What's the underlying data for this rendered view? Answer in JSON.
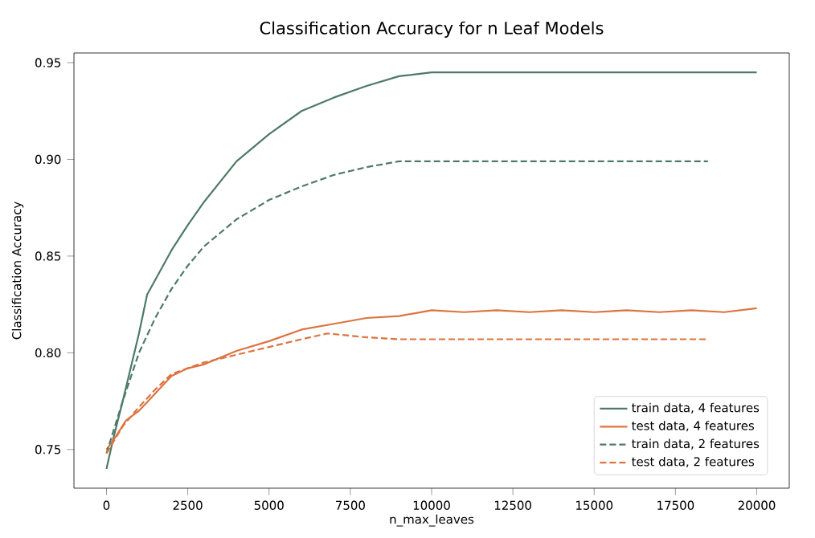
{
  "chart_data": {
    "type": "line",
    "title": "Classification Accuracy for n Leaf Models",
    "xlabel": "n_max_leaves",
    "ylabel": "Classification Accuracy",
    "xlim": [
      -1000,
      21000
    ],
    "ylim": [
      0.73,
      0.955
    ],
    "xticks": [
      0,
      2500,
      5000,
      7500,
      10000,
      12500,
      15000,
      17500,
      20000
    ],
    "yticks": [
      {
        "value": 0.75,
        "label": "0.75"
      },
      {
        "value": 0.8,
        "label": "0.80"
      },
      {
        "value": 0.85,
        "label": "0.85"
      },
      {
        "value": 0.9,
        "label": "0.90"
      },
      {
        "value": 0.95,
        "label": "0.95"
      }
    ],
    "legend": "bottom right",
    "grid": false,
    "series": [
      {
        "name": "train data, 4 features",
        "color": "#4d7a68",
        "line_style": "solid",
        "x": [
          0,
          200,
          500,
          1000,
          1250,
          2000,
          2500,
          3000,
          4000,
          5000,
          6000,
          7000,
          8000,
          9000,
          10000,
          20000
        ],
        "values": [
          0.74,
          0.755,
          0.775,
          0.81,
          0.83,
          0.853,
          0.866,
          0.878,
          0.899,
          0.913,
          0.925,
          0.932,
          0.938,
          0.943,
          0.945,
          0.945
        ]
      },
      {
        "name": "test data, 4 features",
        "color": "#dd7340",
        "line_style": "solid",
        "x": [
          0,
          300,
          600,
          1000,
          1500,
          2000,
          2500,
          3000,
          4000,
          5000,
          6000,
          7000,
          8000,
          9000,
          10000,
          11000,
          12000,
          13000,
          14000,
          15000,
          16000,
          17000,
          18000,
          19000,
          20000
        ],
        "values": [
          0.75,
          0.757,
          0.765,
          0.77,
          0.779,
          0.788,
          0.792,
          0.794,
          0.801,
          0.806,
          0.812,
          0.815,
          0.818,
          0.819,
          0.822,
          0.821,
          0.822,
          0.821,
          0.822,
          0.821,
          0.822,
          0.821,
          0.822,
          0.821,
          0.823
        ]
      },
      {
        "name": "train data, 2 features",
        "color": "#4d7a68",
        "line_style": "dashed",
        "x": [
          0,
          500,
          1000,
          1500,
          2000,
          2500,
          3000,
          4000,
          5000,
          6000,
          7000,
          8000,
          9000,
          10000,
          18500
        ],
        "values": [
          0.748,
          0.775,
          0.8,
          0.818,
          0.833,
          0.845,
          0.855,
          0.869,
          0.879,
          0.886,
          0.892,
          0.896,
          0.899,
          0.899,
          0.899
        ]
      },
      {
        "name": "test data, 2 features",
        "color": "#dd7340",
        "line_style": "dashed",
        "x": [
          0,
          500,
          1000,
          1500,
          2000,
          3000,
          4000,
          5000,
          6000,
          6800,
          8000,
          9000,
          12000,
          15000,
          18500
        ],
        "values": [
          0.748,
          0.762,
          0.772,
          0.781,
          0.789,
          0.795,
          0.799,
          0.803,
          0.807,
          0.81,
          0.808,
          0.807,
          0.807,
          0.807,
          0.807
        ]
      }
    ]
  }
}
